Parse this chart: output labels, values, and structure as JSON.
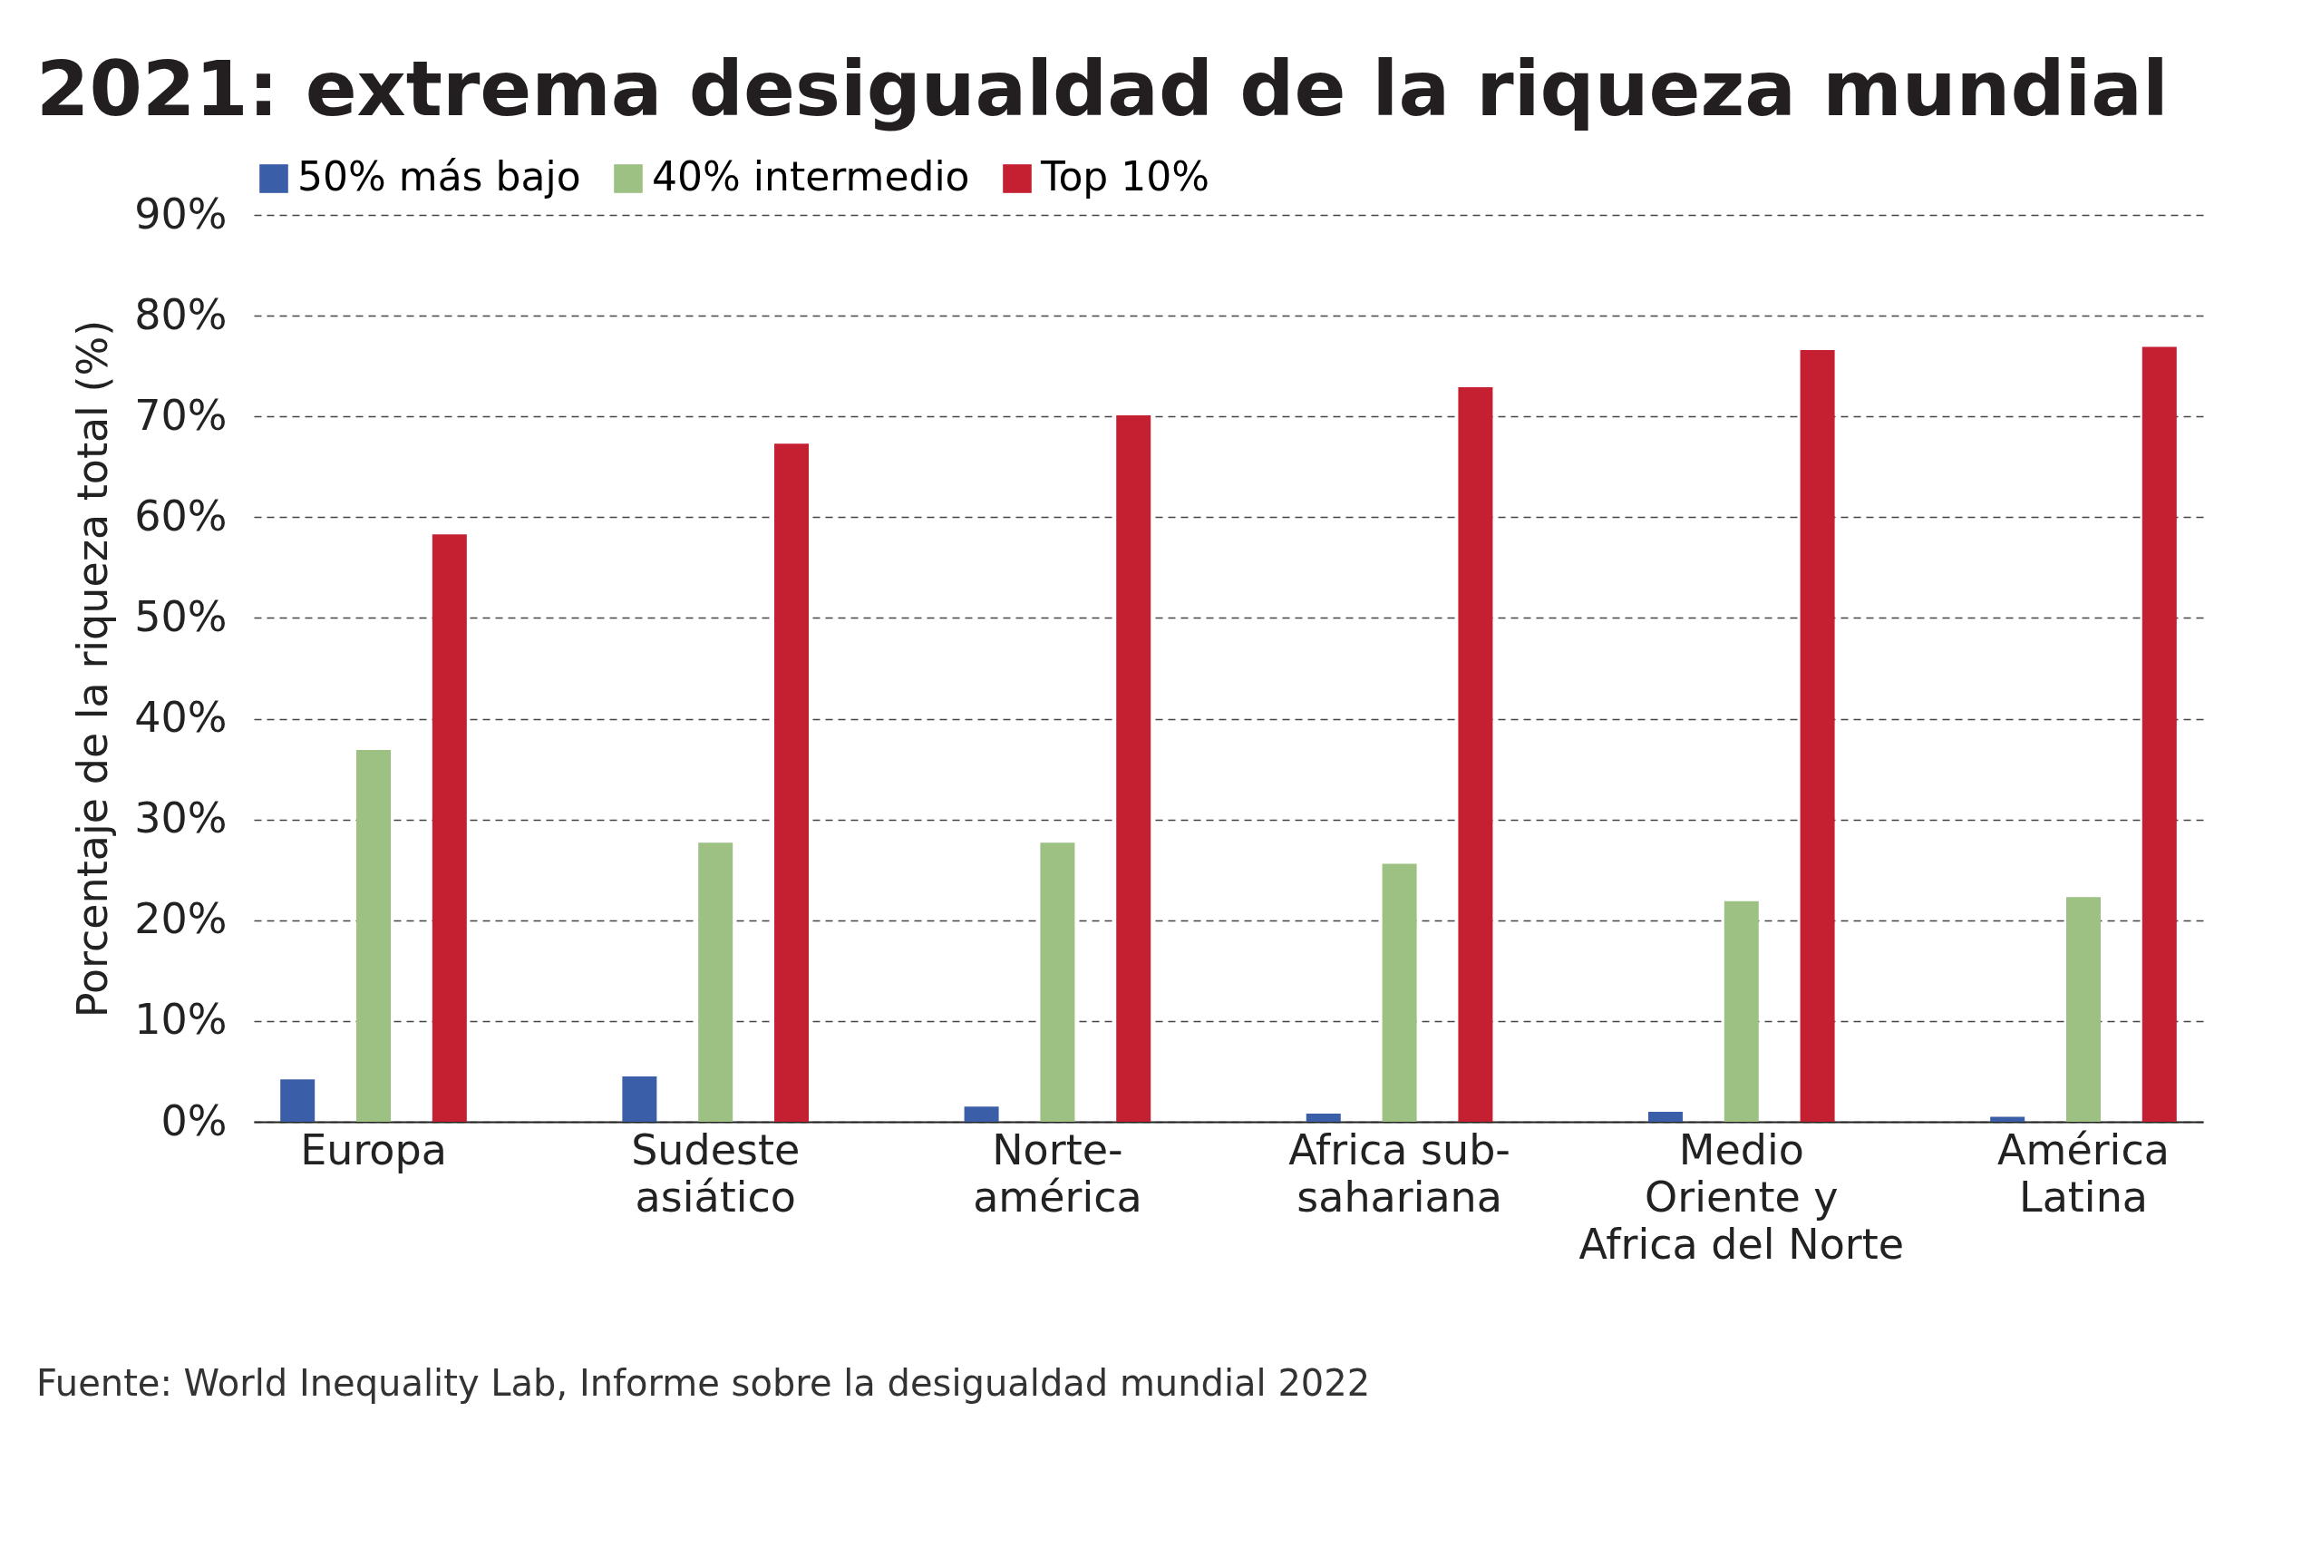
{
  "chart_data": {
    "type": "bar",
    "title": "2021: extrema desigualdad de la riqueza mundial",
    "categories": [
      "Europa",
      "Sudeste\nasiático",
      "Norte-\namérica",
      "Africa sub-\nsahariana",
      "Medio\nOriente y\nAfrica del Norte",
      "América\nLatina"
    ],
    "series": [
      {
        "name": "50% más bajo",
        "color": "#3a5fa8",
        "values": [
          4.2,
          4.5,
          1.5,
          0.8,
          1.0,
          0.5
        ]
      },
      {
        "name": "40% intermedio",
        "color": "#9dc183",
        "values": [
          36.9,
          27.7,
          27.7,
          25.6,
          21.9,
          22.3
        ]
      },
      {
        "name": "Top 10%",
        "color": "#c42032",
        "values": [
          58.3,
          67.3,
          70.1,
          72.9,
          76.6,
          76.9
        ]
      }
    ],
    "ylabel": "Porcentaje de la riqueza total (%)",
    "ylim": [
      0,
      90
    ],
    "yticks": [
      {
        "value": 0,
        "label": "0%"
      },
      {
        "value": 10,
        "label": "10%"
      },
      {
        "value": 20,
        "label": "20%"
      },
      {
        "value": 30,
        "label": "30%"
      },
      {
        "value": 40,
        "label": "40%"
      },
      {
        "value": 50,
        "label": "50%"
      },
      {
        "value": 60,
        "label": "60%"
      },
      {
        "value": 70,
        "label": "70%"
      },
      {
        "value": 80,
        "label": "80%"
      },
      {
        "value": 90,
        "label": "90%"
      }
    ],
    "grid": "y",
    "legend": "top",
    "annotations": [
      "Fuente: World Inequality Lab, Informe sobre la desigualdad mundial 2022"
    ]
  }
}
